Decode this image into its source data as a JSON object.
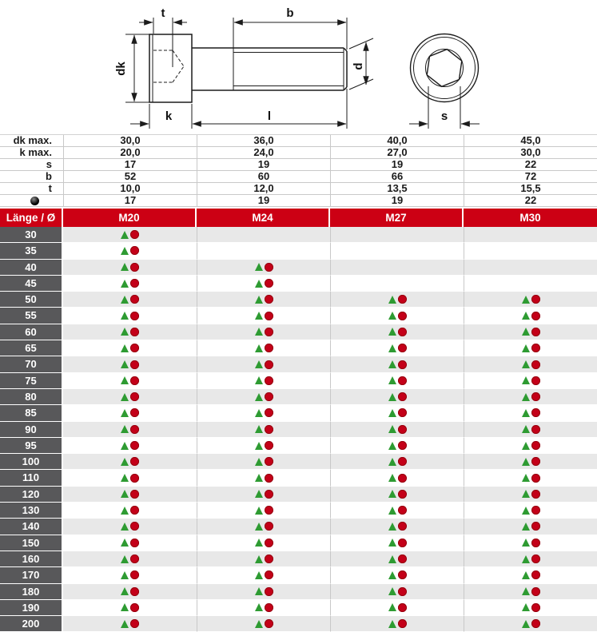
{
  "drawing": {
    "labels": {
      "t": "t",
      "b": "b",
      "dk": "dk",
      "k": "k",
      "l": "l",
      "d": "d",
      "s": "s"
    }
  },
  "spec": {
    "rows": [
      {
        "label": "dk max.",
        "values": [
          "30,0",
          "36,0",
          "40,0",
          "45,0"
        ]
      },
      {
        "label": "k max.",
        "values": [
          "20,0",
          "24,0",
          "27,0",
          "30,0"
        ]
      },
      {
        "label": "s",
        "values": [
          "17",
          "19",
          "19",
          "22"
        ]
      },
      {
        "label": "b",
        "values": [
          "52",
          "60",
          "66",
          "72"
        ]
      },
      {
        "label": "t",
        "values": [
          "10,0",
          "12,0",
          "13,5",
          "15,5"
        ]
      },
      {
        "label": "●",
        "icon": "black-ball-icon",
        "values": [
          "17",
          "19",
          "19",
          "22"
        ]
      }
    ]
  },
  "header": {
    "length_label": "Länge / Ø",
    "sizes": [
      "M20",
      "M24",
      "M27",
      "M30"
    ]
  },
  "availability": {
    "marker_triangle": "green-triangle",
    "marker_circle": "red-circle",
    "rows": [
      {
        "length": "30",
        "cells": [
          true,
          false,
          false,
          false
        ]
      },
      {
        "length": "35",
        "cells": [
          true,
          false,
          false,
          false
        ]
      },
      {
        "length": "40",
        "cells": [
          true,
          true,
          false,
          false
        ]
      },
      {
        "length": "45",
        "cells": [
          true,
          true,
          false,
          false
        ]
      },
      {
        "length": "50",
        "cells": [
          true,
          true,
          true,
          true
        ]
      },
      {
        "length": "55",
        "cells": [
          true,
          true,
          true,
          true
        ]
      },
      {
        "length": "60",
        "cells": [
          true,
          true,
          true,
          true
        ]
      },
      {
        "length": "65",
        "cells": [
          true,
          true,
          true,
          true
        ]
      },
      {
        "length": "70",
        "cells": [
          true,
          true,
          true,
          true
        ]
      },
      {
        "length": "75",
        "cells": [
          true,
          true,
          true,
          true
        ]
      },
      {
        "length": "80",
        "cells": [
          true,
          true,
          true,
          true
        ]
      },
      {
        "length": "85",
        "cells": [
          true,
          true,
          true,
          true
        ]
      },
      {
        "length": "90",
        "cells": [
          true,
          true,
          true,
          true
        ]
      },
      {
        "length": "95",
        "cells": [
          true,
          true,
          true,
          true
        ]
      },
      {
        "length": "100",
        "cells": [
          true,
          true,
          true,
          true
        ]
      },
      {
        "length": "110",
        "cells": [
          true,
          true,
          true,
          true
        ]
      },
      {
        "length": "120",
        "cells": [
          true,
          true,
          true,
          true
        ]
      },
      {
        "length": "130",
        "cells": [
          true,
          true,
          true,
          true
        ]
      },
      {
        "length": "140",
        "cells": [
          true,
          true,
          true,
          true
        ]
      },
      {
        "length": "150",
        "cells": [
          true,
          true,
          true,
          true
        ]
      },
      {
        "length": "160",
        "cells": [
          true,
          true,
          true,
          true
        ]
      },
      {
        "length": "170",
        "cells": [
          true,
          true,
          true,
          true
        ]
      },
      {
        "length": "180",
        "cells": [
          true,
          true,
          true,
          true
        ]
      },
      {
        "length": "190",
        "cells": [
          true,
          true,
          true,
          true
        ]
      },
      {
        "length": "200",
        "cells": [
          true,
          true,
          true,
          true
        ]
      }
    ]
  },
  "colors": {
    "header_red": "#cc0014",
    "length_column_gray": "#58585a",
    "stripe_gray": "#e8e8e8",
    "triangle_green": "#2e9b32",
    "circle_red": "#c40019"
  }
}
